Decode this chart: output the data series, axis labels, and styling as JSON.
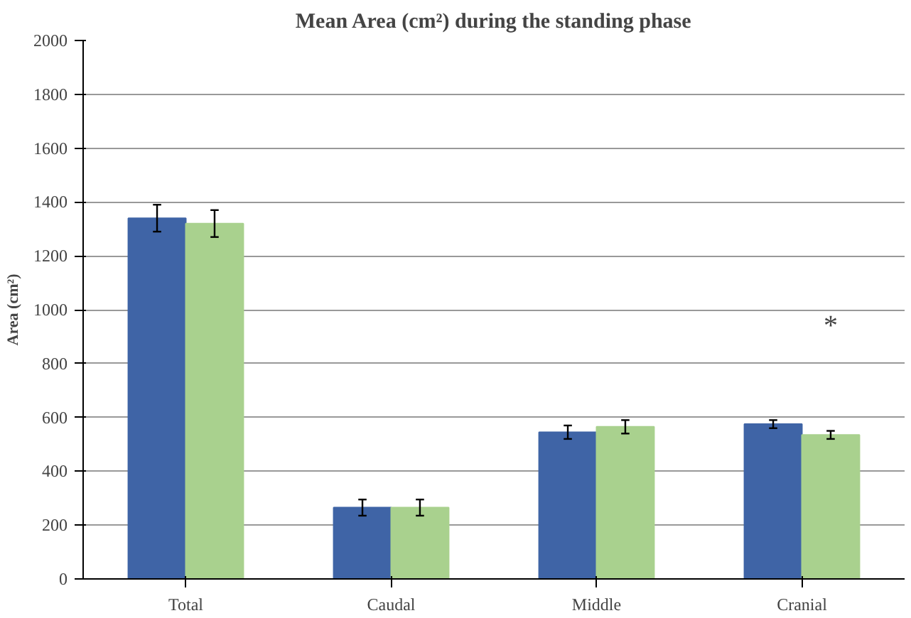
{
  "chart_data": {
    "type": "bar",
    "title": "Mean Area (cm²) during the standing phase",
    "ylabel": "Area (cm²)",
    "categories": [
      "Total",
      "Caudal",
      "Middle",
      "Cranial"
    ],
    "series": [
      {
        "color": "#3f64a6",
        "values": [
          1340,
          265,
          545,
          575
        ],
        "errors": [
          50,
          30,
          25,
          15
        ]
      },
      {
        "color": "#a9d18e",
        "values": [
          1320,
          265,
          565,
          535
        ],
        "errors": [
          50,
          30,
          25,
          15
        ]
      }
    ],
    "ylim": [
      0,
      2000
    ],
    "yticks": [
      0,
      200,
      400,
      600,
      800,
      1000,
      1200,
      1400,
      1600,
      1800,
      2000
    ],
    "grid": "y",
    "annotations": [
      "*"
    ]
  }
}
